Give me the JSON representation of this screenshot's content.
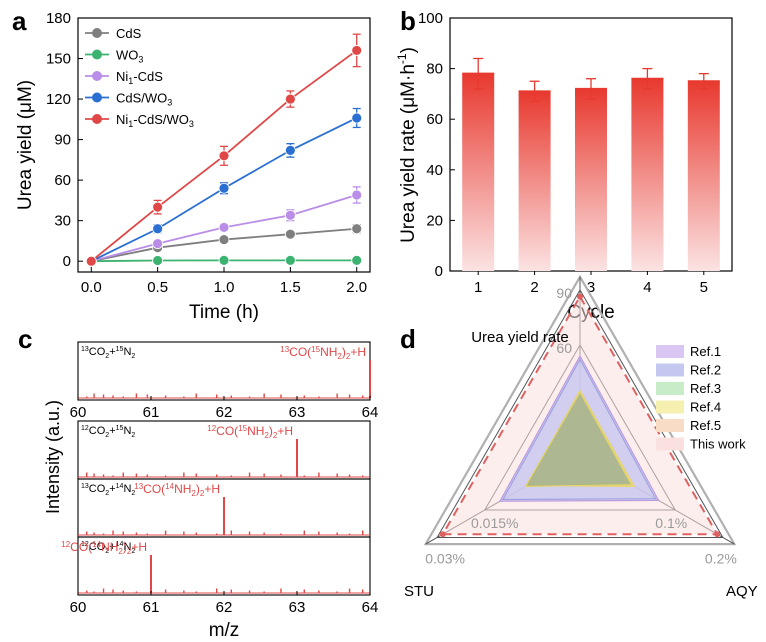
{
  "colors": {
    "cds": "#7f7f7f",
    "wo3": "#3cb371",
    "ni_cds": "#b98de8",
    "cds_wo3": "#2a6fd1",
    "ni_cds_wo3": "#e04848",
    "bar_top": "#e8392f",
    "bar_bottom": "#fbe3e3",
    "axis": "#000000",
    "ms_line": "#e04848",
    "radar_grid": "#555555",
    "radar_outer": "#b0b0b0"
  },
  "panel_labels": {
    "a": "a",
    "b": "b",
    "c": "c",
    "d": "d"
  },
  "chart_data": [
    {
      "panel": "a",
      "type": "line",
      "title": "",
      "xlabel": "Time (h)",
      "ylabel": "Urea yield (μM)",
      "x": [
        0,
        0.5,
        1.0,
        1.5,
        2.0
      ],
      "xticks": [
        "0.0",
        "0.5",
        "1.0",
        "1.5",
        "2.0"
      ],
      "xlim": [
        -0.1,
        2.1
      ],
      "yticks": [
        "0",
        "30",
        "60",
        "90",
        "120",
        "150",
        "180"
      ],
      "ylim": [
        -8,
        180
      ],
      "series": [
        {
          "name_main": "CdS",
          "name_sub": "",
          "name_after": "",
          "color_key": "cds",
          "values": [
            0,
            10,
            16,
            20,
            24
          ],
          "errors": [
            0,
            1.5,
            1.5,
            2,
            3
          ]
        },
        {
          "name_main": "WO",
          "name_sub": "3",
          "name_after": "",
          "color_key": "wo3",
          "values": [
            0,
            0.5,
            0.6,
            0.6,
            0.6
          ],
          "errors": [
            0,
            0.3,
            0.3,
            0.3,
            0.3
          ]
        },
        {
          "name_main": "Ni",
          "name_sub": "1",
          "name_after": "-CdS",
          "color_key": "ni_cds",
          "values": [
            0,
            13,
            25,
            34,
            49
          ],
          "errors": [
            0,
            2,
            2.5,
            4,
            6
          ]
        },
        {
          "name_main": "CdS/WO",
          "name_sub": "3",
          "name_after": "",
          "color_key": "cds_wo3",
          "values": [
            0,
            24,
            54,
            82,
            106
          ],
          "errors": [
            0,
            3,
            4,
            5,
            7
          ]
        },
        {
          "name_main": "Ni",
          "name_sub": "1",
          "name_after": "-CdS/WO",
          "name_sub2": "3",
          "color_key": "ni_cds_wo3",
          "values": [
            0,
            40,
            78,
            120,
            156
          ],
          "errors": [
            0,
            5,
            7,
            6,
            12
          ]
        }
      ]
    },
    {
      "panel": "b",
      "type": "bar",
      "title": "",
      "xlabel": "Cycle",
      "ylabel": "Urea yield rate (μM·h",
      "ylabel_sup": "-1",
      "ylabel_end": ")",
      "categories": [
        "1",
        "2",
        "3",
        "4",
        "5"
      ],
      "values": [
        78,
        71,
        72,
        76,
        75
      ],
      "errors": [
        6,
        4,
        4,
        4,
        3
      ],
      "yticks": [
        "0",
        "20",
        "40",
        "60",
        "80",
        "100"
      ],
      "ylim": [
        0,
        100
      ]
    },
    {
      "panel": "c",
      "type": "line",
      "title": "",
      "xlabel": "m/z",
      "ylabel": "Intensity (a.u.)",
      "xlim": [
        60,
        64
      ],
      "xticks": [
        "60",
        "61",
        "62",
        "63",
        "64"
      ],
      "spectra": [
        {
          "gas_a_sup": "13",
          "gas_a": "CO",
          "gas_b_sup": "15",
          "gas_b": "N",
          "prod_sup": "13",
          "prod_mid_sup": "15",
          "peak_x": 64.0,
          "show_ticks": true
        },
        {
          "gas_a_sup": "12",
          "gas_a": "CO",
          "gas_b_sup": "15",
          "gas_b": "N",
          "prod_sup": "12",
          "prod_mid_sup": "15",
          "peak_x": 63.0,
          "show_ticks": false
        },
        {
          "gas_a_sup": "13",
          "gas_a": "CO",
          "gas_b_sup": "14",
          "gas_b": "N",
          "prod_sup": "13",
          "prod_mid_sup": "14",
          "peak_x": 62.0,
          "show_ticks": false
        },
        {
          "gas_a_sup": "12",
          "gas_a": "CO",
          "gas_b_sup": "14",
          "gas_b": "N",
          "prod_sup": "12",
          "prod_mid_sup": "14",
          "peak_x": 61.0,
          "show_ticks": true
        }
      ],
      "text": {
        "sub2": "2",
        "prod_co": "CO(",
        "prod_nh": "NH",
        "prod_tail": ")",
        "prod_end": "+H"
      }
    },
    {
      "panel": "d",
      "type": "radar",
      "title": "",
      "axes": [
        "Urea yield rate",
        "AQY",
        "STU"
      ],
      "axis_max": [
        90,
        0.2,
        0.03
      ],
      "tick_labels": {
        "urea": [
          "60",
          "90"
        ],
        "aqy": [
          "0.1%",
          "0.2%"
        ],
        "stu": [
          "0.015%",
          "0.03%"
        ]
      },
      "series": [
        {
          "name": "Ref.1",
          "fill": "#d9c6f2",
          "stroke": "#b89be0",
          "values": [
            0.6,
            0.55,
            0.56
          ]
        },
        {
          "name": "Ref.2",
          "fill": "#c4c8f0",
          "stroke": "#9aa2e0",
          "values": [
            0.58,
            0.53,
            0.54
          ]
        },
        {
          "name": "Ref.3",
          "fill": "#c8ecc8",
          "stroke": "#8fd08f",
          "values": [
            0.38,
            0.36,
            0.38
          ]
        },
        {
          "name": "Ref.4",
          "fill": "#f5f0b0",
          "stroke": "#e8d46a",
          "values": [
            0.39,
            0.38,
            0.37
          ]
        },
        {
          "name": "Ref.5",
          "fill": "#f9dcc6",
          "stroke": "#f0b48a",
          "values": [
            0.38,
            0.37,
            0.37
          ]
        },
        {
          "name": "This work",
          "fill": "#fbe0e0",
          "stroke": "#e06060",
          "values": [
            0.96,
            0.96,
            0.96
          ]
        }
      ]
    }
  ]
}
